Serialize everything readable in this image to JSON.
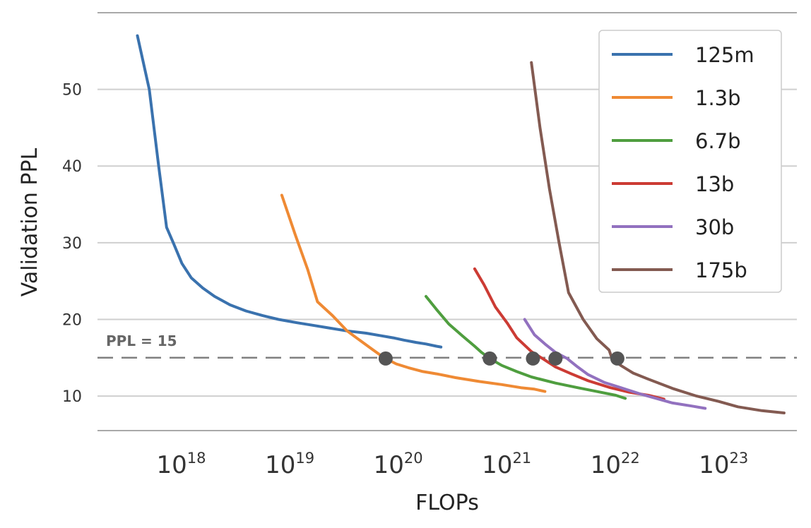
{
  "chart_data": {
    "type": "line",
    "title": "",
    "xlabel": "FLOPs",
    "ylabel": "Validation PPL",
    "x_scale": "log",
    "xlim": [
      1.5e+17,
      4.2e+23
    ],
    "ylim": [
      5.5,
      60
    ],
    "x_ticks": [
      {
        "value": 1e+18,
        "base": "10",
        "exp": "18"
      },
      {
        "value": 1e+19,
        "base": "10",
        "exp": "19"
      },
      {
        "value": 1e+20,
        "base": "10",
        "exp": "20"
      },
      {
        "value": 1e+21,
        "base": "10",
        "exp": "21"
      },
      {
        "value": 1e+22,
        "base": "10",
        "exp": "22"
      },
      {
        "value": 1e+23,
        "base": "10",
        "exp": "23"
      }
    ],
    "y_ticks": [
      10,
      20,
      30,
      40,
      50
    ],
    "grid": "horizontal",
    "legend_position": "top-right",
    "reference_line": {
      "y": 15,
      "label": "PPL = 15"
    },
    "series": [
      {
        "name": "125m",
        "color": "#3a72ae",
        "points": [
          [
            3.5e+17,
            57
          ],
          [
            4.5e+17,
            50
          ],
          [
            5.5e+17,
            40
          ],
          [
            6.5e+17,
            32
          ],
          [
            7.5e+17,
            30
          ],
          [
            9e+17,
            27.3
          ],
          [
            1.1e+18,
            25.4
          ],
          [
            1.4e+18,
            24.1
          ],
          [
            1.8e+18,
            23
          ],
          [
            2.5e+18,
            21.9
          ],
          [
            3.5e+18,
            21.1
          ],
          [
            5e+18,
            20.5
          ],
          [
            7e+18,
            20
          ],
          [
            1e+19,
            19.6
          ],
          [
            1.5e+19,
            19.2
          ],
          [
            2e+19,
            18.9
          ],
          [
            3e+19,
            18.5
          ],
          [
            4.5e+19,
            18.2
          ],
          [
            6e+19,
            17.9
          ],
          [
            8e+19,
            17.6
          ],
          [
            1e+20,
            17.3
          ],
          [
            1.3e+20,
            17
          ],
          [
            1.6e+20,
            16.8
          ],
          [
            2e+20,
            16.5
          ],
          [
            2.2e+20,
            16.4
          ]
        ]
      },
      {
        "name": "1.3b",
        "color": "#ef8a34",
        "points": [
          [
            7.5e+18,
            36.2
          ],
          [
            1e+19,
            31
          ],
          [
            1.3e+19,
            26.5
          ],
          [
            1.6e+19,
            22.3
          ],
          [
            2.2e+19,
            20.5
          ],
          [
            3e+19,
            18.5
          ],
          [
            4e+19,
            17.2
          ],
          [
            5e+19,
            16.2
          ],
          [
            6e+19,
            15.4
          ],
          [
            6.8e+19,
            14.9
          ],
          [
            8.5e+19,
            14.2
          ],
          [
            1.1e+20,
            13.7
          ],
          [
            1.5e+20,
            13.2
          ],
          [
            2e+20,
            12.9
          ],
          [
            3e+20,
            12.4
          ],
          [
            5e+20,
            11.9
          ],
          [
            8e+20,
            11.5
          ],
          [
            1.2e+21,
            11.1
          ],
          [
            1.6e+21,
            10.9
          ],
          [
            2e+21,
            10.6
          ]
        ]
      },
      {
        "name": "6.7b",
        "color": "#4f9e3f",
        "points": [
          [
            1.6e+20,
            23
          ],
          [
            2e+20,
            21.3
          ],
          [
            2.6e+20,
            19.4
          ],
          [
            3.5e+20,
            17.8
          ],
          [
            4.5e+20,
            16.5
          ],
          [
            5.2e+20,
            15.7
          ],
          [
            6.2e+20,
            14.9
          ],
          [
            8e+20,
            14
          ],
          [
            1.1e+21,
            13.2
          ],
          [
            1.5e+21,
            12.5
          ],
          [
            2.5e+21,
            11.7
          ],
          [
            4e+21,
            11.1
          ],
          [
            6e+21,
            10.6
          ],
          [
            9e+21,
            10.1
          ],
          [
            1.1e+22,
            9.7
          ]
        ]
      },
      {
        "name": "13b",
        "color": "#cc3b34",
        "points": [
          [
            4.5e+20,
            26.6
          ],
          [
            5.5e+20,
            24.5
          ],
          [
            7e+20,
            21.6
          ],
          [
            9e+20,
            19.5
          ],
          [
            1.1e+21,
            17.6
          ],
          [
            1.5e+21,
            15.8
          ],
          [
            1.9e+21,
            14.9
          ],
          [
            2.5e+21,
            13.8
          ],
          [
            3.5e+21,
            12.9
          ],
          [
            5e+21,
            12
          ],
          [
            8e+21,
            11.1
          ],
          [
            1.2e+22,
            10.5
          ],
          [
            1.8e+22,
            10.1
          ],
          [
            2.5e+22,
            9.6
          ]
        ]
      },
      {
        "name": "30b",
        "color": "#9271bf",
        "points": [
          [
            1.3e+21,
            20
          ],
          [
            1.6e+21,
            18
          ],
          [
            2e+21,
            16.8
          ],
          [
            2.5e+21,
            15.7
          ],
          [
            3.2e+21,
            14.9
          ],
          [
            4e+21,
            13.8
          ],
          [
            5e+21,
            12.8
          ],
          [
            7e+21,
            11.8
          ],
          [
            1e+22,
            11.1
          ],
          [
            1.5e+22,
            10.3
          ],
          [
            2e+22,
            9.8
          ],
          [
            3e+22,
            9.1
          ],
          [
            4.5e+22,
            8.7
          ],
          [
            6e+22,
            8.4
          ]
        ]
      },
      {
        "name": "175b",
        "color": "#835a51",
        "points": [
          [
            1.5e+21,
            53.5
          ],
          [
            1.8e+21,
            45
          ],
          [
            2.2e+21,
            37
          ],
          [
            2.7e+21,
            30
          ],
          [
            3.3e+21,
            23.5
          ],
          [
            4.5e+21,
            20
          ],
          [
            6e+21,
            17.5
          ],
          [
            7.8e+21,
            16
          ],
          [
            8.3e+21,
            14.9
          ],
          [
            1e+22,
            14
          ],
          [
            1.3e+22,
            13
          ],
          [
            1.8e+22,
            12.2
          ],
          [
            3e+22,
            11
          ],
          [
            5e+22,
            10
          ],
          [
            8e+22,
            9.3
          ],
          [
            1.2e+23,
            8.6
          ],
          [
            2e+23,
            8.1
          ],
          [
            3.2e+23,
            7.8
          ]
        ]
      }
    ],
    "markers": [
      {
        "x": 6.8e+19,
        "y": 14.9
      },
      {
        "x": 6.2e+20,
        "y": 14.9
      },
      {
        "x": 1.55e+21,
        "y": 14.9
      },
      {
        "x": 2.5e+21,
        "y": 14.9
      },
      {
        "x": 9.3e+21,
        "y": 14.9
      }
    ]
  }
}
